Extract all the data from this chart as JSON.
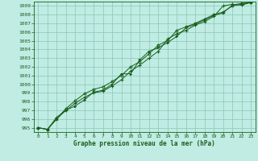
{
  "title": "Graphe pression niveau de la mer (hPa)",
  "bg_color": "#c0ece4",
  "grid_color": "#88c8b4",
  "line_color": "#1a5e1a",
  "xlim": [
    -0.5,
    23.5
  ],
  "ylim": [
    994.5,
    1009.5
  ],
  "xticks": [
    0,
    1,
    2,
    3,
    4,
    5,
    6,
    7,
    8,
    9,
    10,
    11,
    12,
    13,
    14,
    15,
    16,
    17,
    18,
    19,
    20,
    21,
    22,
    23
  ],
  "yticks": [
    995,
    996,
    997,
    998,
    999,
    1000,
    1001,
    1002,
    1003,
    1004,
    1005,
    1006,
    1007,
    1008,
    1009
  ],
  "series1_x": [
    0,
    1,
    2,
    3,
    4,
    5,
    6,
    7,
    8,
    9,
    10,
    11,
    12,
    13,
    14,
    15,
    16,
    17,
    18,
    19,
    20,
    21,
    22,
    23
  ],
  "series1_y": [
    995.0,
    994.8,
    996.2,
    997.0,
    997.8,
    998.5,
    999.0,
    999.2,
    999.8,
    1000.5,
    1001.5,
    1002.2,
    1003.0,
    1003.8,
    1005.2,
    1005.8,
    1006.2,
    1006.8,
    1007.2,
    1007.8,
    1009.0,
    1009.2,
    1009.1,
    1009.4
  ],
  "series2_x": [
    0,
    1,
    2,
    3,
    4,
    5,
    6,
    7,
    8,
    9,
    10,
    11,
    12,
    13,
    14,
    15,
    16,
    17,
    18,
    19,
    20,
    21,
    22,
    23
  ],
  "series2_y": [
    995.0,
    994.8,
    996.0,
    997.2,
    998.1,
    998.9,
    999.4,
    999.7,
    1000.3,
    1001.0,
    1002.0,
    1002.6,
    1003.5,
    1004.5,
    1005.0,
    1006.2,
    1006.6,
    1007.0,
    1007.5,
    1008.0,
    1008.3,
    1009.0,
    1009.2,
    1009.4
  ],
  "series3_x": [
    0,
    1,
    2,
    3,
    4,
    5,
    6,
    7,
    8,
    9,
    10,
    11,
    12,
    13,
    14,
    15,
    16,
    17,
    18,
    19,
    20,
    21,
    22,
    23
  ],
  "series3_y": [
    995.0,
    994.8,
    996.0,
    997.0,
    997.5,
    998.2,
    999.1,
    999.3,
    1000.0,
    1001.2,
    1001.2,
    1002.8,
    1003.8,
    1004.2,
    1004.8,
    1005.5,
    1006.5,
    1006.9,
    1007.4,
    1007.9,
    1008.2,
    1009.1,
    1009.3,
    1009.4
  ]
}
